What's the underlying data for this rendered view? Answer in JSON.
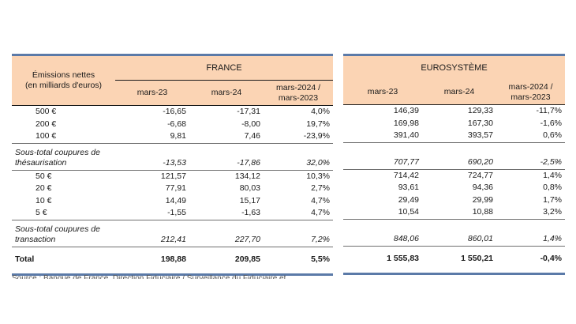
{
  "header": {
    "label_line1": "Émissions nettes",
    "label_line2": "(en milliards d'euros)",
    "france": "FRANCE",
    "euro": "EUROSYSTÈME",
    "col_mar23": "mars-23",
    "col_mar24": "mars-24",
    "col_var_line1": "mars-2024 /",
    "col_var_line2": "mars-2023"
  },
  "rows": [
    {
      "label": "500 €",
      "fr23": "-16,65",
      "fr24": "-17,31",
      "frv": "4,0%",
      "eu23": "146,39",
      "eu24": "129,33",
      "euv": "-11,7%"
    },
    {
      "label": "200 €",
      "fr23": "-6,68",
      "fr24": "-8,00",
      "frv": "19,7%",
      "eu23": "169,98",
      "eu24": "167,30",
      "euv": "-1,6%"
    },
    {
      "label": "100 €",
      "fr23": "9,81",
      "fr24": "7,46",
      "frv": "-23,9%",
      "eu23": "391,40",
      "eu24": "393,57",
      "euv": "0,6%"
    }
  ],
  "subtotal1": {
    "label_line1": "Sous-total coupures de",
    "label_line2": "thésaurisation",
    "fr23": "-13,53",
    "fr24": "-17,86",
    "frv": "32,0%",
    "eu23": "707,77",
    "eu24": "690,20",
    "euv": "-2,5%"
  },
  "rows2": [
    {
      "label": "50 €",
      "fr23": "121,57",
      "fr24": "134,12",
      "frv": "10,3%",
      "eu23": "714,42",
      "eu24": "724,77",
      "euv": "1,4%"
    },
    {
      "label": "20 €",
      "fr23": "77,91",
      "fr24": "80,03",
      "frv": "2,7%",
      "eu23": "93,61",
      "eu24": "94,36",
      "euv": "0,8%"
    },
    {
      "label": "10 €",
      "fr23": "14,49",
      "fr24": "15,17",
      "frv": "4,7%",
      "eu23": "29,49",
      "eu24": "29,99",
      "euv": "1,7%"
    },
    {
      "label": "5 €",
      "fr23": "-1,55",
      "fr24": "-1,63",
      "frv": "4,7%",
      "eu23": "10,54",
      "eu24": "10,88",
      "euv": "3,2%"
    }
  ],
  "subtotal2": {
    "label_line1": "Sous-total coupures de",
    "label_line2": "transaction",
    "fr23": "212,41",
    "fr24": "227,70",
    "frv": "7,2%",
    "eu23": "848,06",
    "eu24": "860,01",
    "euv": "1,4%"
  },
  "total": {
    "label": "Total",
    "fr23": "198,88",
    "fr24": "209,85",
    "frv": "5,5%",
    "eu23": "1 555,83",
    "eu24": "1 550,21",
    "euv": "-0,4%"
  },
  "source": "Source : Banque de France, Direction Fiduciaire / Surveillance du Fiduciaire et"
}
